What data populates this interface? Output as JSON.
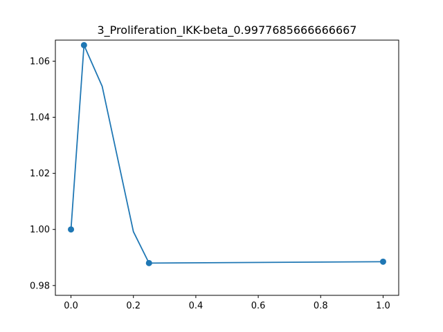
{
  "chart_data": {
    "type": "line",
    "title": "3_Proliferation_IKK-beta_0.9977685666666667",
    "xlabel": "",
    "ylabel": "",
    "xlim": [
      -0.05,
      1.05
    ],
    "ylim": [
      0.9765,
      1.0675
    ],
    "x_ticks": [
      0.0,
      0.2,
      0.4,
      0.6,
      0.8,
      1.0
    ],
    "x_tick_labels": [
      "0.0",
      "0.2",
      "0.4",
      "0.6",
      "0.8",
      "1.0"
    ],
    "y_ticks": [
      0.98,
      1.0,
      1.02,
      1.04,
      1.06
    ],
    "y_tick_labels": [
      "0.98",
      "1.00",
      "1.02",
      "1.04",
      "1.06"
    ],
    "grid": false,
    "legend": "none",
    "series": [
      {
        "color": "#1f77b4",
        "line": {
          "x": [
            0.0,
            0.0417,
            0.1,
            0.2,
            0.25,
            1.0
          ],
          "y": [
            1.0,
            1.0657,
            1.051,
            0.9992,
            0.988,
            0.9885
          ]
        },
        "markers": {
          "x": [
            0.0,
            0.0417,
            0.25,
            1.0
          ],
          "y": [
            1.0,
            1.0657,
            0.988,
            0.9885
          ]
        }
      }
    ]
  }
}
